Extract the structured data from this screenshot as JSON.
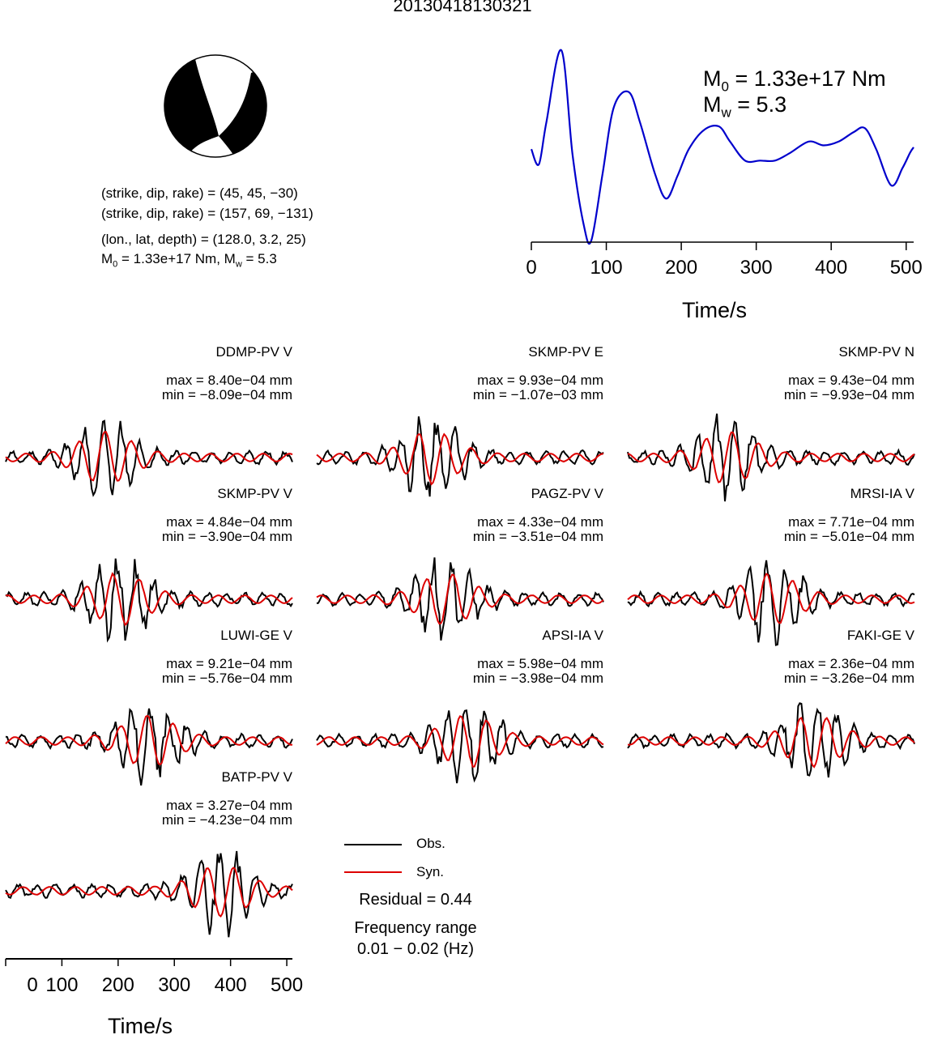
{
  "title": "20130418130321",
  "mechanism": {
    "line1": "(strike, dip, rake) = (45, 45, −30)",
    "line2": "(strike, dip, rake) = (157, 69, −131)",
    "line3": "(lon., lat, depth) = (128.0, 3.2, 25)",
    "m0_prefix": "M",
    "m0_sub": "0",
    "m0_rest": " = 1.33e+17 Nm, M",
    "mw_sub": "w",
    "mw_rest": " = 5.3"
  },
  "stf": {
    "m0_label": "M",
    "m0_sub": "0",
    "m0_value": " = 1.33e+17 Nm",
    "mw_label": "M",
    "mw_sub": "w",
    "mw_value": " = 5.3",
    "xlabel": "Time/s",
    "ticks": [
      "0",
      "100",
      "200",
      "300",
      "400",
      "500"
    ]
  },
  "traces": [
    {
      "station": "DDMP-PV V",
      "max": "max = 8.40e−04 mm",
      "min": "min = −8.09e−04 mm"
    },
    {
      "station": "SKMP-PV E",
      "max": "max = 9.93e−04 mm",
      "min": "min = −1.07e−03 mm"
    },
    {
      "station": "SKMP-PV N",
      "max": "max = 9.43e−04 mm",
      "min": "min = −9.93e−04 mm"
    },
    {
      "station": "SKMP-PV V",
      "max": "max = 4.84e−04 mm",
      "min": "min = −3.90e−04 mm"
    },
    {
      "station": "PAGZ-PV V",
      "max": "max = 4.33e−04 mm",
      "min": "min = −3.51e−04 mm"
    },
    {
      "station": "MRSI-IA V",
      "max": "max = 7.71e−04 mm",
      "min": "min = −5.01e−04 mm"
    },
    {
      "station": "LUWI-GE V",
      "max": "max = 9.21e−04 mm",
      "min": "min = −5.76e−04 mm"
    },
    {
      "station": "APSI-IA V",
      "max": "max = 5.98e−04 mm",
      "min": "min = −3.98e−04 mm"
    },
    {
      "station": "FAKI-GE V",
      "max": "max = 2.36e−04 mm",
      "min": "min = −3.26e−04 mm"
    },
    {
      "station": "BATP-PV V",
      "max": "max = 3.27e−04 mm",
      "min": "min = −4.23e−04 mm"
    }
  ],
  "legend": {
    "obs": "Obs.",
    "syn": "Syn.",
    "obs_color": "#000000",
    "syn_color": "#dd0000",
    "residual": "Residual = 0.44",
    "freq_title": "Frequency range",
    "freq_value": "0.01 − 0.02 (Hz)"
  },
  "bottom_axis": {
    "xlabel": "Time/s",
    "ticks": [
      "0",
      "100",
      "200",
      "300",
      "400",
      "500"
    ]
  },
  "chart_data": [
    {
      "type": "line",
      "title": "",
      "xlabel": "Time/s",
      "ylabel": "",
      "xlim": [
        0,
        510
      ],
      "grid": false,
      "series": [
        {
          "color": "#0000cc",
          "x": [
            0,
            10,
            20,
            40,
            55,
            70,
            80,
            95,
            110,
            130,
            145,
            165,
            180,
            195,
            210,
            230,
            250,
            265,
            285,
            305,
            325,
            345,
            370,
            390,
            410,
            430,
            445,
            460,
            480,
            495,
            505,
            510
          ],
          "y": [
            0.48,
            0.4,
            0.62,
            1.0,
            0.45,
            0.08,
            0.0,
            0.35,
            0.7,
            0.78,
            0.62,
            0.35,
            0.22,
            0.34,
            0.48,
            0.58,
            0.6,
            0.52,
            0.42,
            0.42,
            0.42,
            0.46,
            0.52,
            0.5,
            0.52,
            0.57,
            0.59,
            0.48,
            0.29,
            0.38,
            0.46,
            0.49
          ]
        }
      ]
    },
    {
      "type": "line",
      "title": "",
      "xlabel": "Time/s",
      "ylabel": "",
      "xlim": [
        0,
        510
      ],
      "grid": false,
      "series": [
        {
          "name": "Obs.",
          "color": "#000000",
          "x": [
            0,
            20,
            40,
            60,
            80,
            100,
            120,
            140,
            150,
            160,
            170,
            180,
            190,
            200,
            220,
            240,
            260,
            280,
            300,
            320,
            340,
            350,
            360,
            375,
            385,
            395,
            405,
            415,
            430,
            445,
            460,
            475,
            490,
            510
          ],
          "y": [
            0.05,
            0.1,
            0.05,
            0.12,
            -0.05,
            0.1,
            -0.05,
            0.1,
            -0.02,
            0.08,
            -0.1,
            0.15,
            -0.2,
            0.1,
            -0.15,
            0.3,
            -0.25,
            0.15,
            -0.4,
            0.1,
            -0.2,
            0.1,
            0.4,
            1.0,
            0.2,
            -0.8,
            -0.6,
            0.1,
            0.5,
            0.4,
            0.2,
            0.0,
            0.1,
            0.0
          ]
        },
        {
          "name": "Syn.",
          "color": "#dd0000",
          "x": [
            0,
            20,
            40,
            60,
            80,
            100,
            120,
            140,
            160,
            180,
            200,
            220,
            240,
            260,
            280,
            300,
            320,
            340,
            360,
            375,
            385,
            395,
            405,
            415,
            430,
            445,
            460,
            475,
            490,
            510
          ],
          "y": [
            -0.1,
            0.1,
            0.15,
            0.05,
            0.12,
            0.0,
            0.1,
            -0.05,
            0.08,
            -0.1,
            0.12,
            -0.2,
            0.15,
            -0.25,
            0.1,
            -0.15,
            0.05,
            -0.1,
            0.4,
            0.9,
            0.1,
            -0.7,
            -1.0,
            0.0,
            0.6,
            0.7,
            0.3,
            0.05,
            0.1,
            0.0
          ]
        }
      ]
    }
  ]
}
